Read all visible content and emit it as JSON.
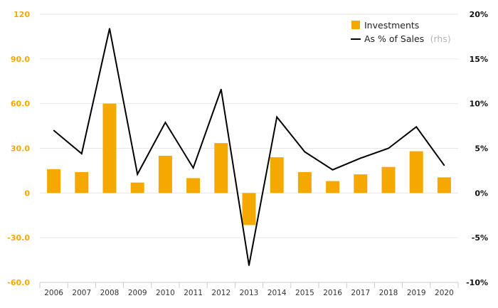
{
  "chart_data": {
    "type": "bar",
    "categories": [
      "2006",
      "2007",
      "2008",
      "2009",
      "2010",
      "2011",
      "2012",
      "2013",
      "2014",
      "2015",
      "2016",
      "2017",
      "2018",
      "2019",
      "2020"
    ],
    "series": [
      {
        "name": "Investments",
        "type": "bar",
        "axis": "left",
        "color": "#f5a800",
        "values": [
          16,
          14,
          60,
          7,
          25,
          10,
          33.5,
          -21.5,
          24,
          14,
          8,
          12.5,
          17.5,
          28,
          10.5
        ]
      },
      {
        "name": "As % of Sales",
        "name_suffix": "(rhs)",
        "type": "line",
        "axis": "right",
        "color": "#000000",
        "values": [
          7.0,
          4.4,
          18.4,
          2.1,
          7.9,
          2.8,
          11.6,
          -8.1,
          8.5,
          4.6,
          2.6,
          3.9,
          5.0,
          7.4,
          3.1
        ]
      }
    ],
    "y_left": {
      "lim": [
        -60,
        120
      ],
      "ticks": [
        120,
        90,
        60,
        30,
        0,
        -30,
        -60
      ],
      "tick_labels": [
        "120",
        "90.0",
        "60.0",
        "30.0",
        "0",
        "-30.0",
        "-60.0"
      ],
      "color": "#f5a800"
    },
    "y_right": {
      "lim": [
        -10,
        20
      ],
      "ticks": [
        20,
        15,
        10,
        5,
        0,
        -5,
        -10
      ],
      "tick_labels": [
        "20%",
        "15%",
        "10%",
        "5%",
        "0%",
        "-5%",
        "-10%"
      ],
      "color": "#111111"
    },
    "grid": true,
    "legend_position": "top-right"
  }
}
